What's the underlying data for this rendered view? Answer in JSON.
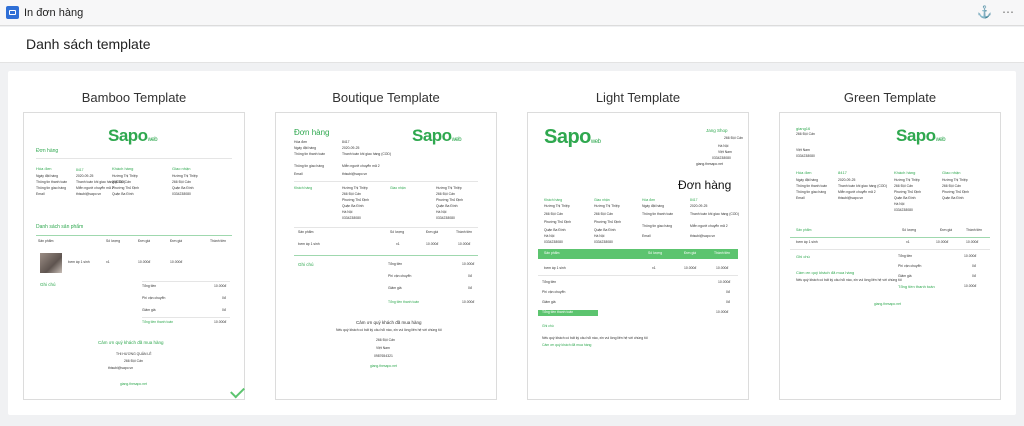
{
  "window": {
    "title": "In đơn hàng",
    "pin_icon": "pin-icon",
    "more_icon": "more-icon"
  },
  "page": {
    "title": "Danh sách template"
  },
  "templates": [
    {
      "name": "Bamboo Template",
      "selected": true
    },
    {
      "name": "Boutique Template",
      "selected": false
    },
    {
      "name": "Light Template",
      "selected": false
    },
    {
      "name": "Green Template",
      "selected": false
    }
  ],
  "preview": {
    "logo_main": "Sapo",
    "logo_sub": "web",
    "order_heading": "Đơn hàng",
    "invoice": "Hóa đơn",
    "customer": "Khách hàng",
    "delivery": "Giao nhận",
    "order_id": "8417",
    "order_date_label": "Ngày đặt hàng",
    "order_date": "2020-09-25",
    "payment_label": "Thông tin thanh toán",
    "payment_value": "Thanh toán khi giao hàng (COD)",
    "shipping_label": "Thông tin giao hàng",
    "shipping_value": "Miễn người chuyển mã 2",
    "email_label": "Email",
    "email_value": "thisubi@sapo.vn",
    "cust_name": "Hướng Thị Thiệp",
    "addr1": "266 Đội Cấn",
    "addr2": "Phường Thủ Định",
    "addr3": "Quận Ba Đình",
    "addr4": "Hà Nội",
    "phone": "0334238080",
    "products_heading": "Danh sách sản phẩm",
    "col_product": "Sản phẩm",
    "col_qty": "Số lượng",
    "col_price": "Đơn giá",
    "col_total": "Thành tiền",
    "item_name": "bơm áp 1 sinh",
    "item_qty": "x1",
    "item_price": "10.000đ",
    "item_total": "10.000đ",
    "notes": "Ghi chú",
    "subtotal_label": "Tổng tiền",
    "subtotal": "10.000đ",
    "ship_fee_label": "Phí vận chuyển",
    "ship_fee": "0đ",
    "discount_label": "Giảm giá",
    "discount": "0đ",
    "grand_total_label": "Tổng tiền thanh toán",
    "grand_total": "10.000đ",
    "thanks": "Cảm ơn quý khách đã mua hàng",
    "contact_note": "Nếu quý khách có bất kỳ câu hỏi nào, xin vui lòng liên hệ với chúng tôi",
    "shop_name": "THI HƯƠNG QUẢN LÊ",
    "shop_addr": "266 Đội Cấn",
    "shop_country": "Việt Nam",
    "shop_phone": "0987654321",
    "footer_domain": "giang.thesapo.net",
    "light_shop": "Jang Shop",
    "green_shop": "giang16"
  }
}
